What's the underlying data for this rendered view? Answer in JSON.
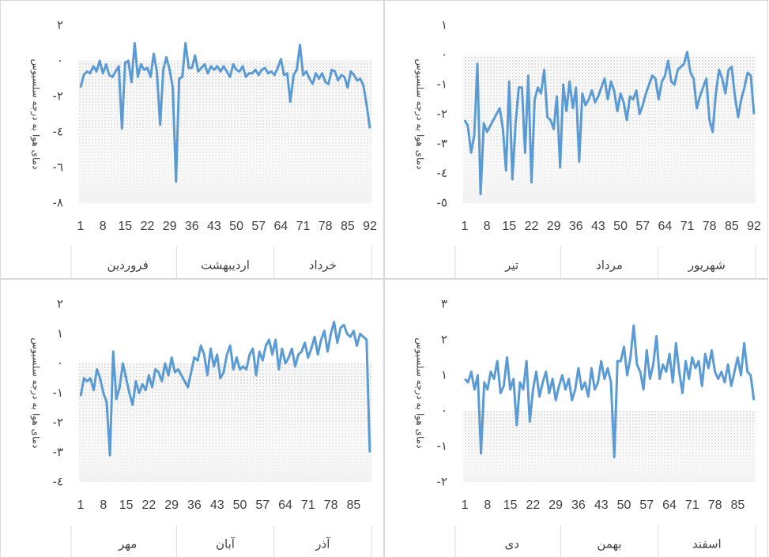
{
  "chart_data": [
    {
      "type": "line",
      "y_label": "دمای هوا به درجه سلسیوس",
      "color": "#5b9bd5",
      "ylim": [
        -8,
        2
      ],
      "yticks": [
        {
          "value": 2,
          "label": "٢"
        },
        {
          "value": 0,
          "label": "٠"
        },
        {
          "value": -2,
          "label": "-٢"
        },
        {
          "value": -4,
          "label": "-٤"
        },
        {
          "value": -6,
          "label": "-٦"
        },
        {
          "value": -8,
          "label": "-٨"
        }
      ],
      "groups": [
        "فروردین",
        "اردیبهشت",
        "خرداد"
      ],
      "categories": [
        "1",
        null,
        null,
        null,
        null,
        null,
        null,
        "8",
        null,
        null,
        null,
        null,
        null,
        null,
        "15",
        null,
        null,
        null,
        null,
        null,
        null,
        "22",
        null,
        null,
        null,
        null,
        null,
        null,
        "29",
        null,
        null,
        null,
        null,
        null,
        null,
        "36",
        null,
        null,
        null,
        null,
        null,
        null,
        "43",
        null,
        null,
        null,
        null,
        null,
        null,
        "50",
        null,
        null,
        null,
        null,
        null,
        null,
        "57",
        null,
        null,
        null,
        null,
        null,
        null,
        "64",
        null,
        null,
        null,
        null,
        null,
        null,
        "71",
        null,
        null,
        null,
        null,
        null,
        null,
        "78",
        null,
        null,
        null,
        null,
        null,
        null,
        "85",
        null,
        null,
        null,
        null,
        null,
        null,
        "92"
      ],
      "values": [
        -1.5,
        -0.8,
        -0.6,
        -0.7,
        -0.3,
        -0.6,
        0,
        -0.7,
        -0.2,
        -0.8,
        -0.9,
        -0.6,
        -0.3,
        -3.8,
        -0.1,
        0,
        -1.2,
        1,
        -0.9,
        -0.2,
        -0.5,
        -0.4,
        -0.9,
        0.4,
        -0.6,
        -3.6,
        -0.5,
        0.2,
        -0.5,
        -1.5,
        -6.8,
        -1,
        -0.9,
        1,
        -0.4,
        -0.4,
        0.3,
        -0.6,
        -0.4,
        -0.2,
        -0.7,
        -0.3,
        -0.5,
        -0.3,
        -0.6,
        -0.3,
        -0.6,
        -0.9,
        -0.2,
        -0.5,
        -0.6,
        -0.3,
        -0.9,
        -0.7,
        -0.7,
        -0.5,
        -0.8,
        -0.5,
        -0.4,
        -0.7,
        -0.6,
        -0.8,
        -0.4,
        0.1,
        -0.8,
        -0.7,
        -2.3,
        -0.8,
        -0.5,
        0.9,
        -0.8,
        -0.6,
        -1,
        -1.3,
        -0.7,
        -1,
        -0.7,
        -1.2,
        -1.3,
        -0.5,
        -0.6,
        -1.1,
        -0.8,
        -0.9,
        -1.5,
        -0.6,
        -0.8,
        -1.1,
        -1,
        -1.4,
        -2.5,
        -3.8
      ]
    },
    {
      "type": "line",
      "y_label": "دمای هوا به درجه سلسیوس",
      "color": "#5b9bd5",
      "ylim": [
        -5,
        1
      ],
      "yticks": [
        {
          "value": 1,
          "label": "١"
        },
        {
          "value": 0,
          "label": "٠"
        },
        {
          "value": -1,
          "label": "-١"
        },
        {
          "value": -2,
          "label": "-٢"
        },
        {
          "value": -3,
          "label": "-٣"
        },
        {
          "value": -4,
          "label": "-٤"
        },
        {
          "value": -5,
          "label": "-٥"
        }
      ],
      "groups": [
        "تیر",
        "مرداد",
        "شهریور"
      ],
      "categories": [
        "1",
        null,
        null,
        null,
        null,
        null,
        null,
        "8",
        null,
        null,
        null,
        null,
        null,
        null,
        "15",
        null,
        null,
        null,
        null,
        null,
        null,
        "22",
        null,
        null,
        null,
        null,
        null,
        null,
        "29",
        null,
        null,
        null,
        null,
        null,
        null,
        "36",
        null,
        null,
        null,
        null,
        null,
        null,
        "43",
        null,
        null,
        null,
        null,
        null,
        null,
        "50",
        null,
        null,
        null,
        null,
        null,
        null,
        "57",
        null,
        null,
        null,
        null,
        null,
        null,
        "64",
        null,
        null,
        null,
        null,
        null,
        null,
        "71",
        null,
        null,
        null,
        null,
        null,
        null,
        "78",
        null,
        null,
        null,
        null,
        null,
        null,
        "85",
        null,
        null,
        null,
        null,
        null,
        null,
        "92"
      ],
      "values": [
        -2.2,
        -2.4,
        -3.3,
        -2.7,
        -0.3,
        -4.7,
        -2.3,
        -2.6,
        -2.4,
        -2.2,
        -2,
        -1.8,
        -2.5,
        -3.9,
        -0.9,
        -4.2,
        -2.3,
        -1.1,
        -1.1,
        -3.3,
        -0.7,
        -4.3,
        -1.5,
        -1.1,
        -1.3,
        -0.5,
        -2.1,
        -2.2,
        -2.5,
        -1.4,
        -3.8,
        -1,
        -1.9,
        -0.9,
        -1.8,
        -1.1,
        -3.6,
        -1.3,
        -1.7,
        -1.5,
        -1.2,
        -1.6,
        -1.4,
        -1.1,
        -0.8,
        -1.5,
        -0.9,
        -1.2,
        -1.9,
        -1.3,
        -1.6,
        -2.2,
        -1.4,
        -1.5,
        -1.2,
        -2,
        -1.7,
        -1.3,
        -1,
        -0.7,
        -0.8,
        -1.5,
        -0.9,
        -0.7,
        -0.2,
        -0.9,
        -1,
        -0.5,
        -0.4,
        -0.3,
        0.1,
        -0.6,
        -0.8,
        -1.8,
        -1.4,
        -1.1,
        -0.8,
        -2.2,
        -2.6,
        -1.3,
        -0.5,
        -0.8,
        -1.3,
        -0.5,
        -0.4,
        -1.4,
        -2.1,
        -1.5,
        -1.1,
        -0.6,
        -0.7,
        -2
      ]
    },
    {
      "type": "line",
      "y_label": "دمای هوا به درجه سلسیوس",
      "color": "#5b9bd5",
      "ylim": [
        -4,
        2
      ],
      "yticks": [
        {
          "value": 2,
          "label": "٢"
        },
        {
          "value": 1,
          "label": "١"
        },
        {
          "value": 0,
          "label": "٠"
        },
        {
          "value": -1,
          "label": "-١"
        },
        {
          "value": -2,
          "label": "-٢"
        },
        {
          "value": -3,
          "label": "-٣"
        },
        {
          "value": -4,
          "label": "-٤"
        }
      ],
      "groups": [
        "مهر",
        "آبان",
        "آذر"
      ],
      "categories": [
        "1",
        null,
        null,
        null,
        null,
        null,
        null,
        "8",
        null,
        null,
        null,
        null,
        null,
        null,
        "15",
        null,
        null,
        null,
        null,
        null,
        null,
        "22",
        null,
        null,
        null,
        null,
        null,
        null,
        "29",
        null,
        null,
        null,
        null,
        null,
        null,
        "36",
        null,
        null,
        null,
        null,
        null,
        null,
        "43",
        null,
        null,
        null,
        null,
        null,
        null,
        "50",
        null,
        null,
        null,
        null,
        null,
        null,
        "57",
        null,
        null,
        null,
        null,
        null,
        null,
        "64",
        null,
        null,
        null,
        null,
        null,
        null,
        "71",
        null,
        null,
        null,
        null,
        null,
        null,
        "78",
        null,
        null,
        null,
        null,
        null,
        null,
        "85",
        null,
        null,
        null,
        null,
        null
      ],
      "values": [
        -1.1,
        -0.5,
        -0.6,
        -0.5,
        -0.9,
        -0.2,
        -0.5,
        -1,
        -1.3,
        -3.1,
        0.4,
        -1.2,
        -0.8,
        0,
        -0.5,
        -1,
        -1.4,
        -0.6,
        -1,
        -0.7,
        -0.9,
        -0.4,
        -0.8,
        -0.2,
        -0.3,
        -0.6,
        0,
        -0.4,
        0.2,
        -0.3,
        -0.2,
        -0.4,
        -0.6,
        -0.8,
        -0.3,
        0.2,
        0.1,
        0.6,
        0.3,
        -0.4,
        0.5,
        -0.1,
        0.3,
        -0.5,
        -0.3,
        0.3,
        0.6,
        -0.2,
        0.2,
        -0.2,
        -0.1,
        -0.2,
        0.3,
        0.5,
        -0.4,
        0.4,
        0.1,
        0.6,
        0.8,
        0.3,
        0.8,
        -0.2,
        0.5,
        0,
        0.2,
        0.5,
        -0.1,
        0.3,
        0.4,
        0.7,
        0.2,
        0.5,
        0.9,
        0.3,
        0.8,
        1.1,
        0.4,
        1,
        1.4,
        0.7,
        1.2,
        1.3,
        1,
        0.9,
        1.1,
        0.6,
        1,
        0.9,
        0.8,
        -3
      ]
    },
    {
      "type": "line",
      "y_label": "دمای هوا به درجه سلسیوس",
      "color": "#5b9bd5",
      "ylim": [
        -2,
        3
      ],
      "yticks": [
        {
          "value": 3,
          "label": "٣"
        },
        {
          "value": 2,
          "label": "٢"
        },
        {
          "value": 1,
          "label": "١"
        },
        {
          "value": 0,
          "label": "٠"
        },
        {
          "value": -1,
          "label": "-١"
        },
        {
          "value": -2,
          "label": "-٢"
        }
      ],
      "groups": [
        "دی",
        "بهمن",
        "اسفند"
      ],
      "categories": [
        "1",
        null,
        null,
        null,
        null,
        null,
        null,
        "8",
        null,
        null,
        null,
        null,
        null,
        null,
        "15",
        null,
        null,
        null,
        null,
        null,
        null,
        "22",
        null,
        null,
        null,
        null,
        null,
        null,
        "29",
        null,
        null,
        null,
        null,
        null,
        null,
        "36",
        null,
        null,
        null,
        null,
        null,
        null,
        "43",
        null,
        null,
        null,
        null,
        null,
        null,
        "50",
        null,
        null,
        null,
        null,
        null,
        null,
        "57",
        null,
        null,
        null,
        null,
        null,
        null,
        "64",
        null,
        null,
        null,
        null,
        null,
        null,
        "71",
        null,
        null,
        null,
        null,
        null,
        null,
        "78",
        null,
        null,
        null,
        null,
        null,
        null,
        "85",
        null,
        null,
        null,
        null,
        null
      ],
      "values": [
        0.9,
        0.8,
        1.1,
        0.6,
        1,
        -1.2,
        0.8,
        0.6,
        1.1,
        0.9,
        1.4,
        0.5,
        0.7,
        1.5,
        0.6,
        0.9,
        -0.4,
        0.8,
        0.6,
        1.4,
        -0.3,
        0.6,
        1.1,
        0.4,
        0.8,
        1.1,
        0.5,
        0.9,
        0.3,
        0.7,
        1,
        0.6,
        0.9,
        0.3,
        0.6,
        1.2,
        0.6,
        0.8,
        0.4,
        1.2,
        0.6,
        0.8,
        1.4,
        0.9,
        1.2,
        0.8,
        -1.3,
        1.4,
        1.4,
        1.8,
        1,
        1.5,
        2.4,
        1.3,
        1.1,
        0.6,
        1.7,
        0.9,
        1.3,
        2.1,
        0.9,
        1.3,
        1.1,
        1.6,
        0.8,
        1.9,
        1.1,
        0.5,
        1.4,
        0.9,
        1.5,
        1.2,
        1.4,
        0.7,
        1.6,
        1.2,
        1.7,
        1.1,
        0.9,
        1.1,
        0.8,
        1.3,
        0.7,
        1.1,
        1.5,
        1,
        1.9,
        1.1,
        1,
        0.3
      ]
    }
  ]
}
